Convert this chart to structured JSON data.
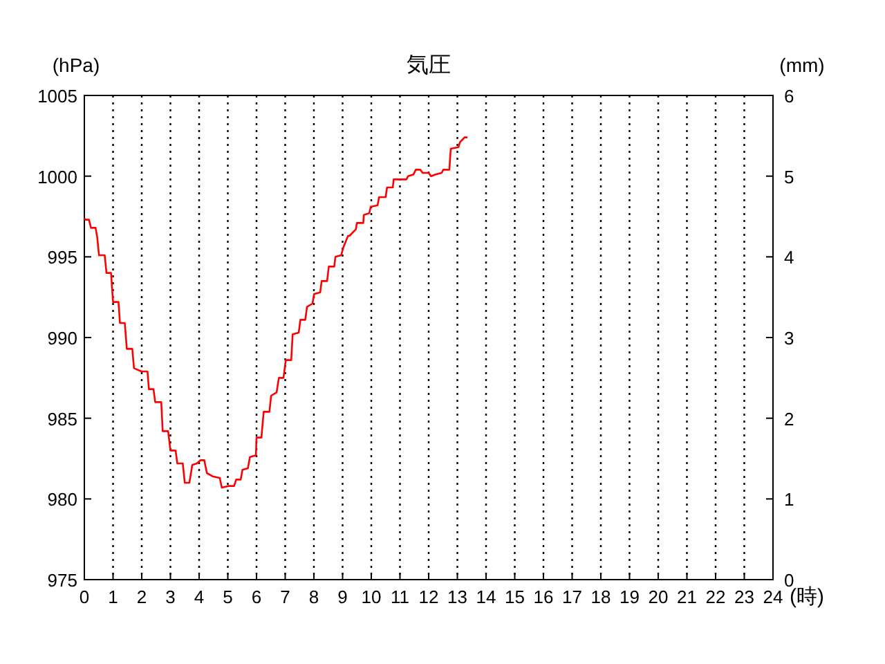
{
  "chart_data": {
    "type": "line",
    "title": "気圧",
    "ylabel": "(hPa)",
    "y2label": "(mm)",
    "xlabel": "(時)",
    "xlim": [
      0,
      24
    ],
    "xticks": [
      0,
      1,
      2,
      3,
      4,
      5,
      6,
      7,
      8,
      9,
      10,
      11,
      12,
      13,
      14,
      15,
      16,
      17,
      18,
      19,
      20,
      21,
      22,
      23,
      24
    ],
    "ylim": [
      975,
      1005
    ],
    "yticks": [
      975,
      980,
      985,
      990,
      995,
      1000,
      1005
    ],
    "y2lim": [
      0,
      6
    ],
    "y2ticks": [
      0,
      1,
      2,
      3,
      4,
      5,
      6
    ],
    "grid": "x",
    "marker": "none",
    "line_style": "solid",
    "series": [
      {
        "color": "#ff0000",
        "x": [
          0,
          0.03,
          0.16,
          0.23,
          0.39,
          0.45,
          0.51,
          0.71,
          0.77,
          0.93,
          1.0,
          1.19,
          1.24,
          1.41,
          1.48,
          1.67,
          1.73,
          1.99,
          2.2,
          2.25,
          2.41,
          2.47,
          2.68,
          2.73,
          2.92,
          3.0,
          3.18,
          3.24,
          3.43,
          3.5,
          3.66,
          3.76,
          3.92,
          4.05,
          4.18,
          4.27,
          4.47,
          4.72,
          4.79,
          5.01,
          5.22,
          5.29,
          5.45,
          5.51,
          5.7,
          5.77,
          5.98,
          6.0,
          6.17,
          6.25,
          6.45,
          6.51,
          6.7,
          6.78,
          6.94,
          7.02,
          7.21,
          7.26,
          7.47,
          7.53,
          7.7,
          7.76,
          7.95,
          8.01,
          8.22,
          8.27,
          8.46,
          8.52,
          8.71,
          8.75,
          8.95,
          9.03,
          9.19,
          9.24,
          9.46,
          9.5,
          9.72,
          9.74,
          9.93,
          9.98,
          10.22,
          10.27,
          10.5,
          10.55,
          10.75,
          10.78,
          11.23,
          11.28,
          11.47,
          11.55,
          11.71,
          11.79,
          12.0,
          12.08,
          12.24,
          12.45,
          12.51,
          12.72,
          12.77,
          13.04,
          13.09,
          13.25,
          13.35
        ],
        "values": [
          997.4,
          997.3,
          997.3,
          996.8,
          996.8,
          996.2,
          995.1,
          995.1,
          994.0,
          994.0,
          992.2,
          992.2,
          990.9,
          990.9,
          989.3,
          989.3,
          988.1,
          987.9,
          987.9,
          986.8,
          986.8,
          986.0,
          986.0,
          984.2,
          984.2,
          983.0,
          983.0,
          982.2,
          982.2,
          981.0,
          981.0,
          982.1,
          982.2,
          982.4,
          982.4,
          981.6,
          981.4,
          981.3,
          980.7,
          980.8,
          980.8,
          981.2,
          981.2,
          981.8,
          981.9,
          982.6,
          982.7,
          983.8,
          983.8,
          985.4,
          985.4,
          986.4,
          986.6,
          987.5,
          987.5,
          988.6,
          988.6,
          990.2,
          990.3,
          991.1,
          991.1,
          991.9,
          992.1,
          992.7,
          992.8,
          993.5,
          993.5,
          994.4,
          994.4,
          995.0,
          995.1,
          995.6,
          996.3,
          996.3,
          996.7,
          997.1,
          997.1,
          997.6,
          997.7,
          998.1,
          998.2,
          998.7,
          998.7,
          999.3,
          999.3,
          999.8,
          999.8,
          1000.0,
          1000.1,
          1000.4,
          1000.4,
          1000.2,
          1000.2,
          1000.0,
          1000.1,
          1000.2,
          1000.4,
          1000.4,
          1001.7,
          1001.8,
          1002.1,
          1002.4,
          1002.4
        ]
      }
    ]
  }
}
